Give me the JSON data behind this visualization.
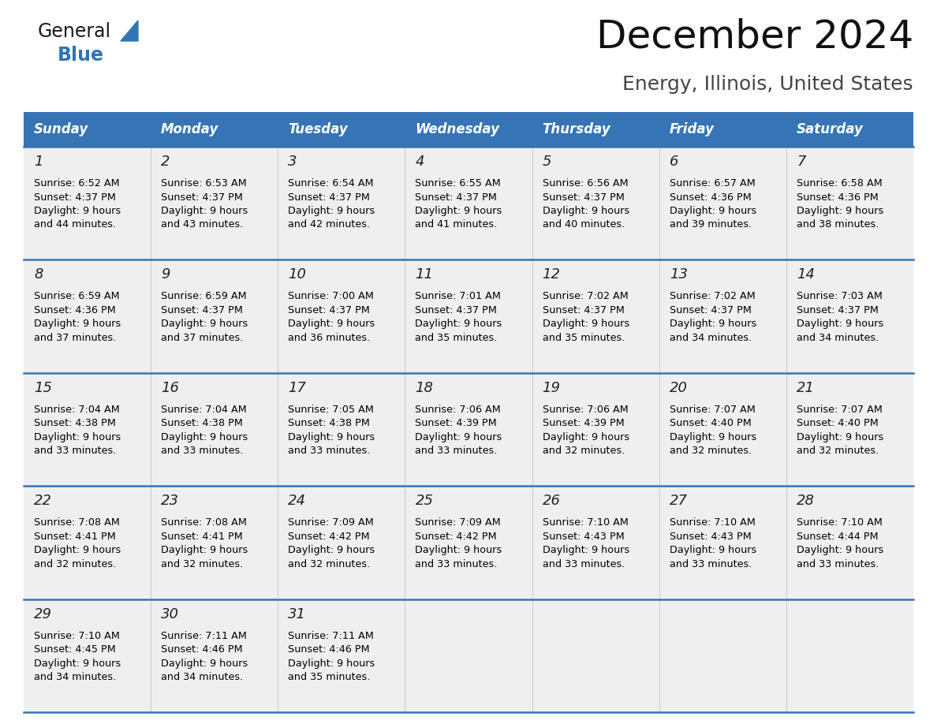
{
  "title": "December 2024",
  "subtitle": "Energy, Illinois, United States",
  "days_of_week": [
    "Sunday",
    "Monday",
    "Tuesday",
    "Wednesday",
    "Thursday",
    "Friday",
    "Saturday"
  ],
  "header_bg": "#3674B5",
  "header_text_color": "#FFFFFF",
  "cell_bg": "#EFEFEF",
  "cell_text_color": "#000000",
  "day_num_color": "#222222",
  "grid_line_color": "#3674B5",
  "title_color": "#111111",
  "subtitle_color": "#444444",
  "logo_general_color": "#1a1a1a",
  "logo_blue_color": "#2E75B6",
  "weeks": [
    {
      "days": [
        {
          "date": 1,
          "sunrise": "6:52 AM",
          "sunset": "4:37 PM",
          "daylight_hours": 9,
          "daylight_minutes": 44
        },
        {
          "date": 2,
          "sunrise": "6:53 AM",
          "sunset": "4:37 PM",
          "daylight_hours": 9,
          "daylight_minutes": 43
        },
        {
          "date": 3,
          "sunrise": "6:54 AM",
          "sunset": "4:37 PM",
          "daylight_hours": 9,
          "daylight_minutes": 42
        },
        {
          "date": 4,
          "sunrise": "6:55 AM",
          "sunset": "4:37 PM",
          "daylight_hours": 9,
          "daylight_minutes": 41
        },
        {
          "date": 5,
          "sunrise": "6:56 AM",
          "sunset": "4:37 PM",
          "daylight_hours": 9,
          "daylight_minutes": 40
        },
        {
          "date": 6,
          "sunrise": "6:57 AM",
          "sunset": "4:36 PM",
          "daylight_hours": 9,
          "daylight_minutes": 39
        },
        {
          "date": 7,
          "sunrise": "6:58 AM",
          "sunset": "4:36 PM",
          "daylight_hours": 9,
          "daylight_minutes": 38
        }
      ]
    },
    {
      "days": [
        {
          "date": 8,
          "sunrise": "6:59 AM",
          "sunset": "4:36 PM",
          "daylight_hours": 9,
          "daylight_minutes": 37
        },
        {
          "date": 9,
          "sunrise": "6:59 AM",
          "sunset": "4:37 PM",
          "daylight_hours": 9,
          "daylight_minutes": 37
        },
        {
          "date": 10,
          "sunrise": "7:00 AM",
          "sunset": "4:37 PM",
          "daylight_hours": 9,
          "daylight_minutes": 36
        },
        {
          "date": 11,
          "sunrise": "7:01 AM",
          "sunset": "4:37 PM",
          "daylight_hours": 9,
          "daylight_minutes": 35
        },
        {
          "date": 12,
          "sunrise": "7:02 AM",
          "sunset": "4:37 PM",
          "daylight_hours": 9,
          "daylight_minutes": 35
        },
        {
          "date": 13,
          "sunrise": "7:02 AM",
          "sunset": "4:37 PM",
          "daylight_hours": 9,
          "daylight_minutes": 34
        },
        {
          "date": 14,
          "sunrise": "7:03 AM",
          "sunset": "4:37 PM",
          "daylight_hours": 9,
          "daylight_minutes": 34
        }
      ]
    },
    {
      "days": [
        {
          "date": 15,
          "sunrise": "7:04 AM",
          "sunset": "4:38 PM",
          "daylight_hours": 9,
          "daylight_minutes": 33
        },
        {
          "date": 16,
          "sunrise": "7:04 AM",
          "sunset": "4:38 PM",
          "daylight_hours": 9,
          "daylight_minutes": 33
        },
        {
          "date": 17,
          "sunrise": "7:05 AM",
          "sunset": "4:38 PM",
          "daylight_hours": 9,
          "daylight_minutes": 33
        },
        {
          "date": 18,
          "sunrise": "7:06 AM",
          "sunset": "4:39 PM",
          "daylight_hours": 9,
          "daylight_minutes": 33
        },
        {
          "date": 19,
          "sunrise": "7:06 AM",
          "sunset": "4:39 PM",
          "daylight_hours": 9,
          "daylight_minutes": 32
        },
        {
          "date": 20,
          "sunrise": "7:07 AM",
          "sunset": "4:40 PM",
          "daylight_hours": 9,
          "daylight_minutes": 32
        },
        {
          "date": 21,
          "sunrise": "7:07 AM",
          "sunset": "4:40 PM",
          "daylight_hours": 9,
          "daylight_minutes": 32
        }
      ]
    },
    {
      "days": [
        {
          "date": 22,
          "sunrise": "7:08 AM",
          "sunset": "4:41 PM",
          "daylight_hours": 9,
          "daylight_minutes": 32
        },
        {
          "date": 23,
          "sunrise": "7:08 AM",
          "sunset": "4:41 PM",
          "daylight_hours": 9,
          "daylight_minutes": 32
        },
        {
          "date": 24,
          "sunrise": "7:09 AM",
          "sunset": "4:42 PM",
          "daylight_hours": 9,
          "daylight_minutes": 32
        },
        {
          "date": 25,
          "sunrise": "7:09 AM",
          "sunset": "4:42 PM",
          "daylight_hours": 9,
          "daylight_minutes": 33
        },
        {
          "date": 26,
          "sunrise": "7:10 AM",
          "sunset": "4:43 PM",
          "daylight_hours": 9,
          "daylight_minutes": 33
        },
        {
          "date": 27,
          "sunrise": "7:10 AM",
          "sunset": "4:43 PM",
          "daylight_hours": 9,
          "daylight_minutes": 33
        },
        {
          "date": 28,
          "sunrise": "7:10 AM",
          "sunset": "4:44 PM",
          "daylight_hours": 9,
          "daylight_minutes": 33
        }
      ]
    },
    {
      "days": [
        {
          "date": 29,
          "sunrise": "7:10 AM",
          "sunset": "4:45 PM",
          "daylight_hours": 9,
          "daylight_minutes": 34
        },
        {
          "date": 30,
          "sunrise": "7:11 AM",
          "sunset": "4:46 PM",
          "daylight_hours": 9,
          "daylight_minutes": 34
        },
        {
          "date": 31,
          "sunrise": "7:11 AM",
          "sunset": "4:46 PM",
          "daylight_hours": 9,
          "daylight_minutes": 35
        },
        null,
        null,
        null,
        null
      ]
    }
  ],
  "fig_width": 11.88,
  "fig_height": 9.18,
  "dpi": 100
}
